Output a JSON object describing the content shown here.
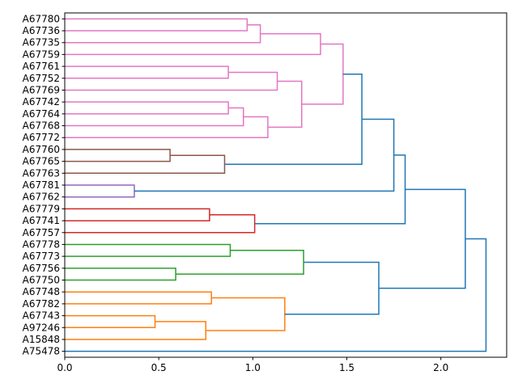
{
  "chart_data": {
    "type": "dendrogram",
    "orientation": "left",
    "xlim": [
      0,
      2.35
    ],
    "xticks": [
      0.0,
      0.5,
      1.0,
      1.5,
      2.0
    ],
    "xtick_labels": [
      "0.0",
      "0.5",
      "1.0",
      "1.5",
      "2.0"
    ],
    "leaves": [
      "A67780",
      "A67736",
      "A67735",
      "A67759",
      "A67761",
      "A67752",
      "A67769",
      "A67742",
      "A67764",
      "A67768",
      "A67772",
      "A67760",
      "A67765",
      "A67763",
      "A67781",
      "A67762",
      "A67779",
      "A67741",
      "A67757",
      "A67778",
      "A67773",
      "A67756",
      "A67750",
      "A67748",
      "A67782",
      "A67743",
      "A97246",
      "A15848",
      "A75478"
    ],
    "colors": {
      "pink": "#e377c2",
      "brown": "#8c564b",
      "purple": "#9467bd",
      "red": "#d62728",
      "green": "#2ca02c",
      "orange": "#ff7f0e",
      "blue": "#1f77b4"
    },
    "merges": [
      {
        "left": "A67780",
        "right": "A67736",
        "height": 0.97,
        "color": "pink"
      },
      {
        "left": "c0",
        "right": "A67735",
        "height": 1.04,
        "color": "pink"
      },
      {
        "left": "c1",
        "right": "A67759",
        "height": 1.36,
        "color": "pink"
      },
      {
        "left": "A67761",
        "right": "A67752",
        "height": 0.87,
        "color": "pink"
      },
      {
        "left": "c3",
        "right": "A67769",
        "height": 1.13,
        "color": "pink"
      },
      {
        "left": "A67742",
        "right": "A67764",
        "height": 0.87,
        "color": "pink"
      },
      {
        "left": "c5",
        "right": "A67768",
        "height": 0.95,
        "color": "pink"
      },
      {
        "left": "c6",
        "right": "A67772",
        "height": 1.08,
        "color": "pink"
      },
      {
        "left": "c4",
        "right": "c7",
        "height": 1.26,
        "color": "pink"
      },
      {
        "left": "c2",
        "right": "c8",
        "height": 1.48,
        "color": "pink"
      },
      {
        "left": "A67760",
        "right": "A67765",
        "height": 0.56,
        "color": "brown"
      },
      {
        "left": "c10",
        "right": "A67763",
        "height": 0.85,
        "color": "brown"
      },
      {
        "left": "c9",
        "right": "c11",
        "height": 1.58,
        "color": "blue"
      },
      {
        "left": "A67781",
        "right": "A67762",
        "height": 0.37,
        "color": "purple"
      },
      {
        "left": "c12",
        "right": "c13",
        "height": 1.75,
        "color": "blue"
      },
      {
        "left": "A67779",
        "right": "A67741",
        "height": 0.77,
        "color": "red"
      },
      {
        "left": "c15",
        "right": "A67757",
        "height": 1.01,
        "color": "red"
      },
      {
        "left": "c14",
        "right": "c16",
        "height": 1.81,
        "color": "blue"
      },
      {
        "left": "A67778",
        "right": "A67773",
        "height": 0.88,
        "color": "green"
      },
      {
        "left": "A67756",
        "right": "A67750",
        "height": 0.59,
        "color": "green"
      },
      {
        "left": "c18",
        "right": "c19",
        "height": 1.27,
        "color": "green"
      },
      {
        "left": "A67748",
        "right": "A67782",
        "height": 0.78,
        "color": "orange"
      },
      {
        "left": "A67743",
        "right": "A97246",
        "height": 0.48,
        "color": "orange"
      },
      {
        "left": "c22",
        "right": "A15848",
        "height": 0.75,
        "color": "orange"
      },
      {
        "left": "c21",
        "right": "c23",
        "height": 1.17,
        "color": "orange"
      },
      {
        "left": "c20",
        "right": "c24",
        "height": 1.67,
        "color": "blue"
      },
      {
        "left": "c17",
        "right": "c25",
        "height": 2.13,
        "color": "blue"
      },
      {
        "left": "c26",
        "right": "A75478",
        "height": 2.24,
        "color": "blue"
      }
    ]
  }
}
